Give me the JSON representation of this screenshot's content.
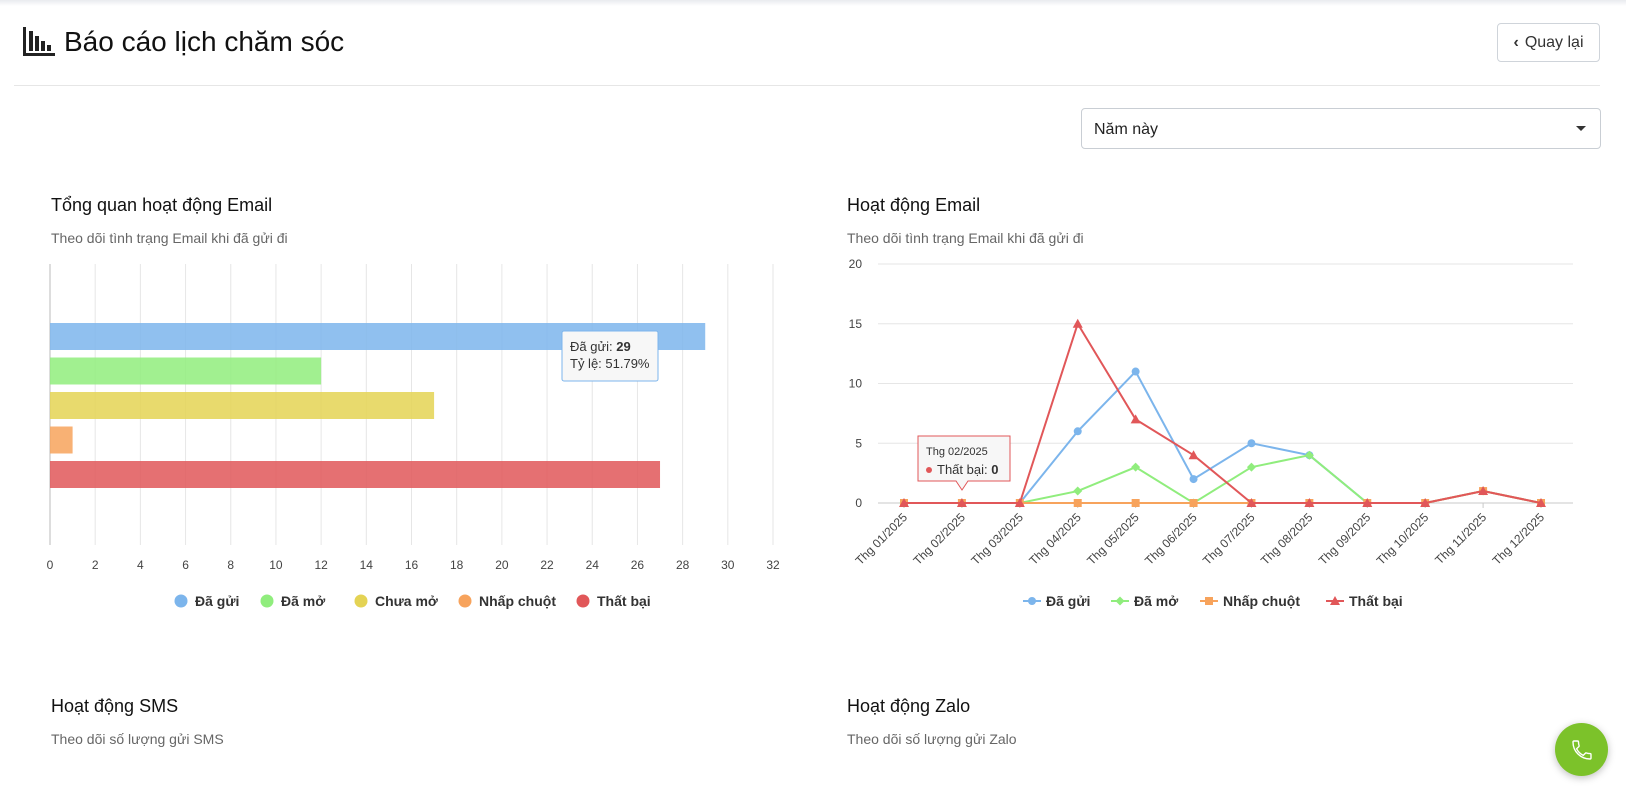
{
  "header": {
    "title": "Báo cáo lịch chăm sóc",
    "back_label": "Quay lại"
  },
  "filter": {
    "selected": "Năm này"
  },
  "cards": {
    "email_overview": {
      "title": "Tổng quan hoạt động Email",
      "subtitle": "Theo dõi tình trạng Email khi đã gửi đi"
    },
    "email_activity": {
      "title": "Hoạt động Email",
      "subtitle": "Theo dõi tình trạng Email khi đã gửi đi"
    },
    "sms_activity": {
      "title": "Hoạt động SMS",
      "subtitle": "Theo dõi số lượng gửi SMS"
    },
    "zalo_activity": {
      "title": "Hoạt động Zalo",
      "subtitle": "Theo dõi số lượng gửi Zalo"
    }
  },
  "chart_data": [
    {
      "type": "bar",
      "orientation": "horizontal",
      "categories": [
        "Đã gửi",
        "Đã mở",
        "Chưa mở",
        "Nhấp chuột",
        "Thất bại"
      ],
      "values": [
        29,
        12,
        17,
        1,
        27
      ],
      "colors": [
        "#7cb5ec",
        "#90ed7d",
        "#e4d354",
        "#f7a35c",
        "#e15759"
      ],
      "xlim": [
        0,
        32
      ],
      "x_ticks": [
        0,
        2,
        4,
        6,
        8,
        10,
        12,
        14,
        16,
        18,
        20,
        22,
        24,
        26,
        28,
        30,
        32
      ],
      "grid": true,
      "legend": "bottom",
      "tooltip": {
        "label": "Đã gửi",
        "value": "29",
        "ratio_label": "Tỷ lệ",
        "ratio": "51.79%"
      }
    },
    {
      "type": "line",
      "categories": [
        "Thg 01/2025",
        "Thg 02/2025",
        "Thg 03/2025",
        "Thg 04/2025",
        "Thg 05/2025",
        "Thg 06/2025",
        "Thg 07/2025",
        "Thg 08/2025",
        "Thg 09/2025",
        "Thg 10/2025",
        "Thg 11/2025",
        "Thg 12/2025"
      ],
      "ylim": [
        0,
        20
      ],
      "y_ticks": [
        0,
        5,
        10,
        15,
        20
      ],
      "grid": true,
      "legend": "bottom",
      "series": [
        {
          "name": "Đã gửi",
          "color": "#7cb5ec",
          "marker": "circle",
          "values": [
            0,
            0,
            0,
            6,
            11,
            2,
            5,
            4,
            0,
            0,
            1,
            0
          ]
        },
        {
          "name": "Đã mở",
          "color": "#90ed7d",
          "marker": "diamond",
          "values": [
            0,
            0,
            0,
            1,
            3,
            0,
            3,
            4,
            0,
            0,
            1,
            0
          ]
        },
        {
          "name": "Nhấp chuột",
          "color": "#f7a35c",
          "marker": "square",
          "values": [
            0,
            0,
            0,
            0,
            0,
            0,
            0,
            0,
            0,
            0,
            1,
            0
          ]
        },
        {
          "name": "Thất bại",
          "color": "#e15759",
          "marker": "triangle",
          "values": [
            0,
            0,
            0,
            15,
            7,
            4,
            0,
            0,
            0,
            0,
            1,
            0
          ]
        }
      ],
      "tooltip": {
        "header": "Thg 02/2025",
        "label": "Thất bại",
        "value": "0"
      }
    }
  ],
  "icons": {
    "title_icon": "bar-chart-icon",
    "back_icon": "chevron-left-icon",
    "select_icon": "caret-down-icon",
    "phone_icon": "phone-icon"
  }
}
